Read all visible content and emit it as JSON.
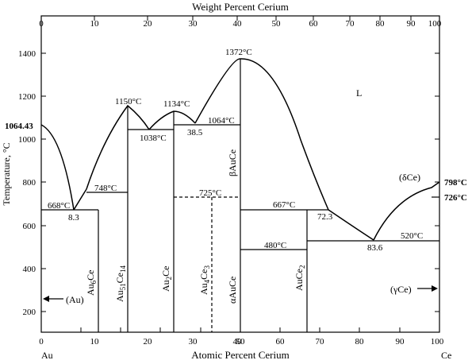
{
  "axes": {
    "top_title": "Weight Percent Cerium",
    "bottom_title": "Atomic Percent Cerium",
    "left_title": "Temperature, °C",
    "top_ticks": [
      "0",
      "10",
      "20",
      "30",
      "40",
      "50",
      "60",
      "70",
      "80",
      "90",
      "100"
    ],
    "bottom_ticks": [
      "0",
      "10",
      "20",
      "30",
      "40",
      "50",
      "60",
      "70",
      "80",
      "90",
      "100"
    ],
    "left_ticks": [
      "200",
      "400",
      "600",
      "800",
      "1000",
      "1200",
      "1400"
    ],
    "element_left": "Au",
    "element_right": "Ce"
  },
  "labels": {
    "t1064": "1064.43",
    "t1150": "1150°C",
    "t1134": "1134°C",
    "t1372": "1372°C",
    "liquid": "L",
    "t1038": "1038°C",
    "c385": "38.5",
    "t1064b": "1064°C",
    "t668": "668°C",
    "c83": "8.3",
    "t748": "748°C",
    "t725": "725°C",
    "t667": "667°C",
    "c723": "72.3",
    "t480": "480°C",
    "c836": "83.6",
    "t520": "520°C",
    "delta": "(δCe)",
    "t798": "798°C",
    "t726": "726°C",
    "au_phase": "(Au)",
    "gamma": "(γCe)"
  },
  "phases": {
    "au6ce": {
      "base": "Au",
      "sub1": "6",
      "mid": "Ce",
      "sub2": ""
    },
    "au51ce14": {
      "base": "Au",
      "sub1": "51",
      "mid": "Ce",
      "sub2": "14"
    },
    "au2ce": {
      "base": "Au",
      "sub1": "2",
      "mid": "Ce",
      "sub2": ""
    },
    "au4ce3": {
      "base": "Au",
      "sub1": "4",
      "mid": "Ce",
      "sub2": "3"
    },
    "beta": "βAuCe",
    "alpha": "αAuCe",
    "auce2": {
      "base": "AuCe",
      "sub1": "2",
      "mid": "",
      "sub2": ""
    }
  }
}
